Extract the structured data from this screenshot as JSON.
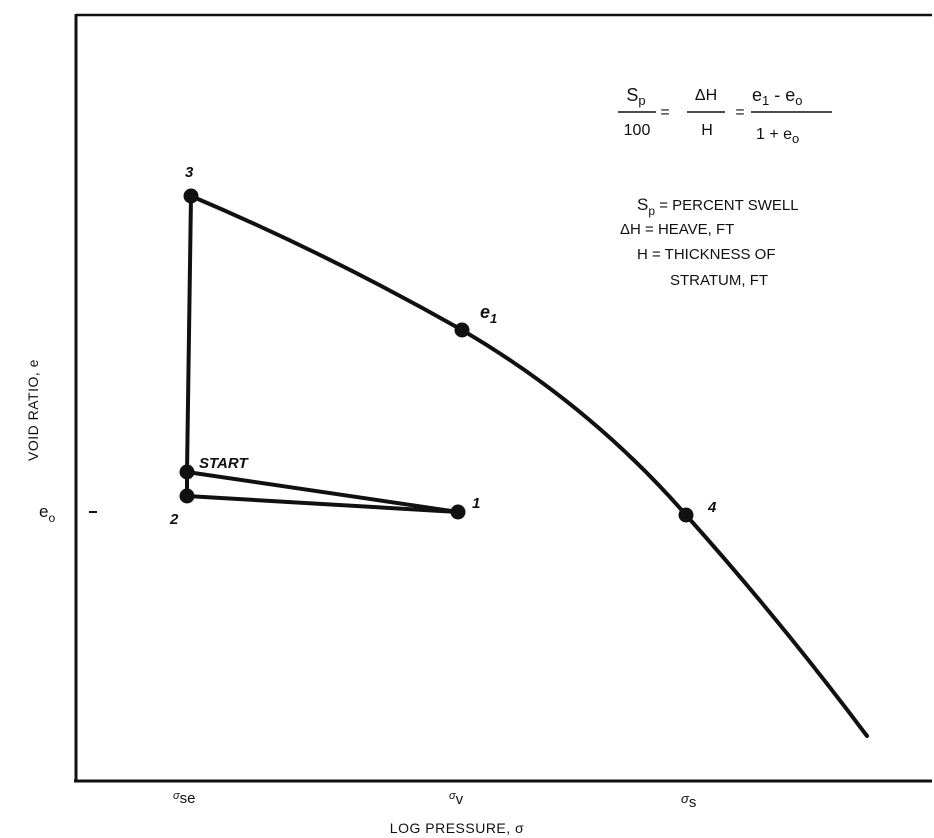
{
  "axes": {
    "x_title": "LOG PRESSURE, σ",
    "y_title": "VOID RATIO, e",
    "y_tick": "e",
    "y_tick_sub": "o",
    "x_ticks": [
      {
        "sym": "σ",
        "sub": "se"
      },
      {
        "sym": "σ",
        "sub": "v"
      },
      {
        "sym": "σ",
        "sub": "s"
      }
    ]
  },
  "points": {
    "start": "START",
    "p1": "1",
    "p2": "2",
    "p3": "3",
    "p4": "4",
    "e1_main": "e",
    "e1_sub": "1"
  },
  "formula": {
    "lhs_num": "S",
    "lhs_num_sub": "p",
    "lhs_den": "100",
    "eq": "=",
    "mid_num": "ΔH",
    "mid_den": "H",
    "rhs_num_a": "e",
    "rhs_num_a_sub": "1",
    "rhs_num_op": " - e",
    "rhs_num_b_sub": "o",
    "rhs_den_a": "1 + e",
    "rhs_den_sub": "o"
  },
  "legend": {
    "sp_sym": "S",
    "sp_sub": "p",
    "sp_text": " = PERCENT SWELL",
    "dh_text": "ΔH = HEAVE, FT",
    "h_text": "H = THICKNESS OF",
    "h_text2": "STRATUM, FT"
  }
}
